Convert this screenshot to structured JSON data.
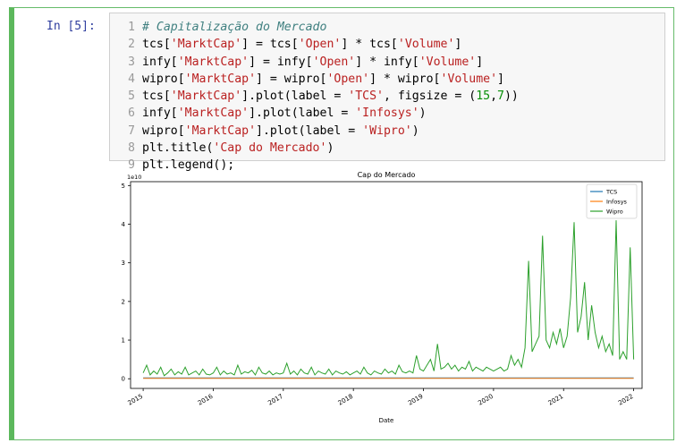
{
  "cell": {
    "prompt": "In [5]:",
    "line_numbers": [
      "1",
      "2",
      "3",
      "4",
      "5",
      "6",
      "7",
      "8",
      "9"
    ],
    "code_lines": [
      [
        {
          "t": "# Capitalização do Mercado",
          "c": "cm"
        }
      ],
      [
        {
          "t": "tcs[",
          "c": ""
        },
        {
          "t": "'MarktCap'",
          "c": "st"
        },
        {
          "t": "] = tcs[",
          "c": ""
        },
        {
          "t": "'Open'",
          "c": "st"
        },
        {
          "t": "] * tcs[",
          "c": ""
        },
        {
          "t": "'Volume'",
          "c": "st"
        },
        {
          "t": "]",
          "c": ""
        }
      ],
      [
        {
          "t": "infy[",
          "c": ""
        },
        {
          "t": "'MarktCap'",
          "c": "st"
        },
        {
          "t": "] = infy[",
          "c": ""
        },
        {
          "t": "'Open'",
          "c": "st"
        },
        {
          "t": "] * infy[",
          "c": ""
        },
        {
          "t": "'Volume'",
          "c": "st"
        },
        {
          "t": "]",
          "c": ""
        }
      ],
      [
        {
          "t": "wipro[",
          "c": ""
        },
        {
          "t": "'MarktCap'",
          "c": "st"
        },
        {
          "t": "] = wipro[",
          "c": ""
        },
        {
          "t": "'Open'",
          "c": "st"
        },
        {
          "t": "] * wipro[",
          "c": ""
        },
        {
          "t": "'Volume'",
          "c": "st"
        },
        {
          "t": "]",
          "c": ""
        }
      ],
      [
        {
          "t": "tcs[",
          "c": ""
        },
        {
          "t": "'MarktCap'",
          "c": "st"
        },
        {
          "t": "].plot(label = ",
          "c": ""
        },
        {
          "t": "'TCS'",
          "c": "st"
        },
        {
          "t": ", figsize = (",
          "c": ""
        },
        {
          "t": "15",
          "c": "nm"
        },
        {
          "t": ",",
          "c": ""
        },
        {
          "t": "7",
          "c": "nm"
        },
        {
          "t": "))",
          "c": ""
        }
      ],
      [
        {
          "t": "infy[",
          "c": ""
        },
        {
          "t": "'MarktCap'",
          "c": "st"
        },
        {
          "t": "].plot(label = ",
          "c": ""
        },
        {
          "t": "'Infosys'",
          "c": "st"
        },
        {
          "t": ")",
          "c": ""
        }
      ],
      [
        {
          "t": "wipro[",
          "c": ""
        },
        {
          "t": "'MarktCap'",
          "c": "st"
        },
        {
          "t": "].plot(label = ",
          "c": ""
        },
        {
          "t": "'Wipro'",
          "c": "st"
        },
        {
          "t": ")",
          "c": ""
        }
      ],
      [
        {
          "t": "plt.title(",
          "c": ""
        },
        {
          "t": "'Cap do Mercado'",
          "c": "st"
        },
        {
          "t": ")",
          "c": ""
        }
      ],
      [
        {
          "t": "plt.legend();",
          "c": ""
        }
      ]
    ]
  },
  "chart_data": {
    "type": "line",
    "title": "Cap do Mercado",
    "xlabel": "Date",
    "ylabel": "",
    "y_offset_label": "1e10",
    "xlim": [
      2014.82,
      2022.12
    ],
    "ylim": [
      -0.25,
      5.1
    ],
    "x_ticks": [
      2015,
      2016,
      2017,
      2018,
      2019,
      2020,
      2021,
      2022
    ],
    "x_tick_labels": [
      "2015",
      "2016",
      "2017",
      "2018",
      "2019",
      "2020",
      "2021",
      "2022"
    ],
    "y_ticks": [
      0,
      1,
      2,
      3,
      4,
      5
    ],
    "y_tick_labels": [
      "0",
      "1",
      "2",
      "3",
      "4",
      "5"
    ],
    "legend_position": "top-right",
    "series": [
      {
        "name": "TCS",
        "color": "#1f77b4",
        "x": [
          2015.0,
          2016.0,
          2017.0,
          2018.0,
          2019.0,
          2020.0,
          2021.0,
          2022.0
        ],
        "values": [
          0.02,
          0.02,
          0.02,
          0.02,
          0.02,
          0.02,
          0.02,
          0.02
        ]
      },
      {
        "name": "Infosys",
        "color": "#ff7f0e",
        "x": [
          2015.0,
          2016.0,
          2017.0,
          2018.0,
          2019.0,
          2020.0,
          2021.0,
          2022.0
        ],
        "values": [
          0.01,
          0.01,
          0.01,
          0.01,
          0.01,
          0.01,
          0.01,
          0.01
        ]
      },
      {
        "name": "Wipro",
        "color": "#2ca02c",
        "x": [
          2015.0,
          2015.05,
          2015.1,
          2015.15,
          2015.2,
          2015.25,
          2015.3,
          2015.35,
          2015.4,
          2015.45,
          2015.5,
          2015.55,
          2015.6,
          2015.65,
          2015.7,
          2015.75,
          2015.8,
          2015.85,
          2015.9,
          2015.95,
          2016.0,
          2016.05,
          2016.1,
          2016.15,
          2016.2,
          2016.25,
          2016.3,
          2016.35,
          2016.4,
          2016.45,
          2016.5,
          2016.55,
          2016.6,
          2016.65,
          2016.7,
          2016.75,
          2016.8,
          2016.85,
          2016.9,
          2016.95,
          2017.0,
          2017.05,
          2017.1,
          2017.15,
          2017.2,
          2017.25,
          2017.3,
          2017.35,
          2017.4,
          2017.45,
          2017.5,
          2017.55,
          2017.6,
          2017.65,
          2017.7,
          2017.75,
          2017.8,
          2017.85,
          2017.9,
          2017.95,
          2018.0,
          2018.05,
          2018.1,
          2018.15,
          2018.2,
          2018.25,
          2018.3,
          2018.35,
          2018.4,
          2018.45,
          2018.5,
          2018.55,
          2018.6,
          2018.65,
          2018.7,
          2018.75,
          2018.8,
          2018.85,
          2018.9,
          2018.95,
          2019.0,
          2019.05,
          2019.1,
          2019.15,
          2019.2,
          2019.25,
          2019.3,
          2019.35,
          2019.4,
          2019.45,
          2019.5,
          2019.55,
          2019.6,
          2019.65,
          2019.7,
          2019.75,
          2019.8,
          2019.85,
          2019.9,
          2019.95,
          2020.0,
          2020.05,
          2020.1,
          2020.15,
          2020.2,
          2020.25,
          2020.3,
          2020.35,
          2020.4,
          2020.45,
          2020.5,
          2020.55,
          2020.6,
          2020.65,
          2020.7,
          2020.75,
          2020.8,
          2020.85,
          2020.9,
          2020.95,
          2021.0,
          2021.05,
          2021.1,
          2021.15,
          2021.2,
          2021.25,
          2021.3,
          2021.35,
          2021.4,
          2021.45,
          2021.5,
          2021.55,
          2021.6,
          2021.65,
          2021.7,
          2021.75,
          2021.8,
          2021.85,
          2021.9,
          2021.95,
          2022.0
        ],
        "values": [
          0.15,
          0.35,
          0.1,
          0.2,
          0.12,
          0.3,
          0.08,
          0.15,
          0.25,
          0.1,
          0.18,
          0.12,
          0.3,
          0.1,
          0.15,
          0.2,
          0.1,
          0.25,
          0.12,
          0.1,
          0.15,
          0.3,
          0.1,
          0.2,
          0.12,
          0.15,
          0.1,
          0.35,
          0.12,
          0.18,
          0.15,
          0.22,
          0.1,
          0.3,
          0.15,
          0.12,
          0.2,
          0.1,
          0.15,
          0.12,
          0.15,
          0.4,
          0.12,
          0.2,
          0.1,
          0.25,
          0.15,
          0.12,
          0.3,
          0.1,
          0.2,
          0.15,
          0.12,
          0.25,
          0.1,
          0.2,
          0.15,
          0.12,
          0.18,
          0.1,
          0.15,
          0.2,
          0.12,
          0.3,
          0.15,
          0.1,
          0.2,
          0.15,
          0.12,
          0.25,
          0.15,
          0.2,
          0.12,
          0.35,
          0.18,
          0.15,
          0.2,
          0.15,
          0.6,
          0.25,
          0.2,
          0.35,
          0.5,
          0.2,
          0.9,
          0.25,
          0.3,
          0.4,
          0.25,
          0.35,
          0.2,
          0.3,
          0.25,
          0.45,
          0.2,
          0.3,
          0.25,
          0.2,
          0.3,
          0.25,
          0.2,
          0.25,
          0.3,
          0.2,
          0.25,
          0.6,
          0.35,
          0.5,
          0.3,
          0.8,
          3.05,
          0.7,
          0.9,
          1.1,
          3.7,
          1.0,
          0.8,
          1.2,
          0.9,
          1.3,
          0.8,
          1.1,
          2.1,
          4.05,
          1.2,
          1.6,
          2.5,
          1.0,
          1.9,
          1.2,
          0.8,
          1.1,
          0.7,
          0.9,
          0.6,
          4.1,
          0.5,
          0.7,
          0.5,
          3.4,
          0.5
        ]
      }
    ]
  }
}
